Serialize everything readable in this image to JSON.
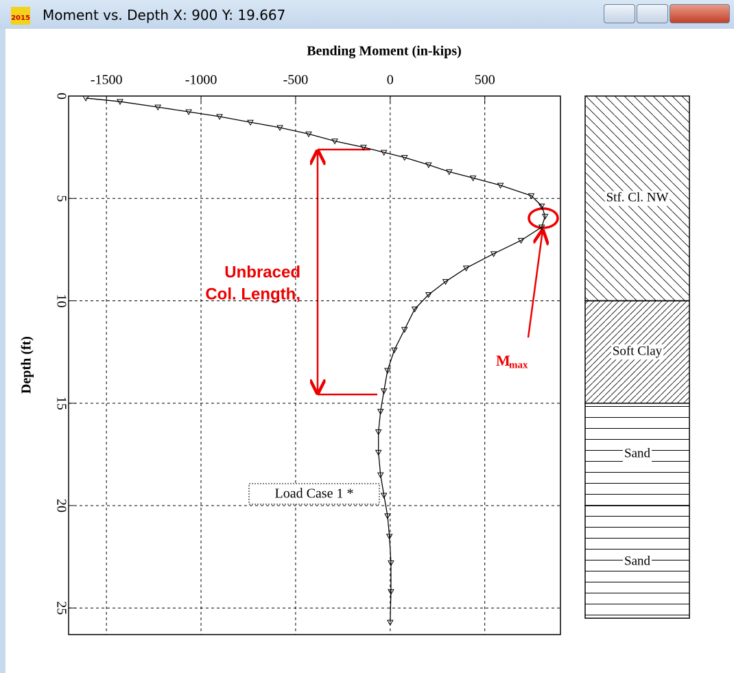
{
  "window": {
    "title": "Moment vs. Depth X: 900 Y: 19.667",
    "icon_label": "2015"
  },
  "chart_data": {
    "type": "line",
    "title": "Bending Moment (in-kips)",
    "y_label": "Depth (ft)",
    "x": [
      0.1,
      0.27,
      0.54,
      0.77,
      1.0,
      1.28,
      1.54,
      1.85,
      2.2,
      2.5,
      2.75,
      3.0,
      3.36,
      3.7,
      4.0,
      4.36,
      4.87,
      5.37,
      5.87,
      6.4,
      7.05,
      7.7,
      8.4,
      9.06,
      9.7,
      10.4,
      11.4,
      12.4,
      13.4,
      14.4,
      15.4,
      16.4,
      17.4,
      18.5,
      19.5,
      20.5,
      21.5,
      22.8,
      24.2,
      25.7
    ],
    "series": [
      {
        "name": "Load Case 1 *",
        "color": "#000000",
        "values": [
          -1609,
          -1428,
          -1228,
          -1065,
          -902,
          -739,
          -583,
          -431,
          -293,
          -141,
          -33,
          76,
          203,
          312,
          438,
          583,
          746,
          801,
          819,
          801,
          692,
          547,
          402,
          293,
          203,
          130,
          76,
          22,
          -14,
          -33,
          -51,
          -62,
          -62,
          -51,
          -33,
          -14,
          -4,
          4,
          4,
          0
        ]
      }
    ],
    "xlim": [
      -1700,
      900
    ],
    "xticks": [
      -1500,
      -1000,
      -500,
      0,
      500
    ],
    "ylim": [
      0,
      26.3
    ],
    "yticks": [
      0,
      5,
      10,
      15,
      20,
      25
    ],
    "grid": true,
    "soil_layers": [
      {
        "label": "Stf. Cl. NW",
        "top": 0,
        "bottom": 10,
        "pattern": "diag-wide"
      },
      {
        "label": "Soft Clay",
        "top": 10,
        "bottom": 15,
        "pattern": "diag-dense"
      },
      {
        "label": "Sand",
        "top": 15,
        "bottom": 20,
        "pattern": "horizontal"
      },
      {
        "label": "Sand",
        "top": 20,
        "bottom": 25.5,
        "pattern": "horizontal"
      }
    ],
    "annotations": {
      "unbraced": [
        "Unbraced",
        "Col. Length,"
      ],
      "mmax": {
        "text": "M",
        "subscript": "max"
      }
    }
  }
}
